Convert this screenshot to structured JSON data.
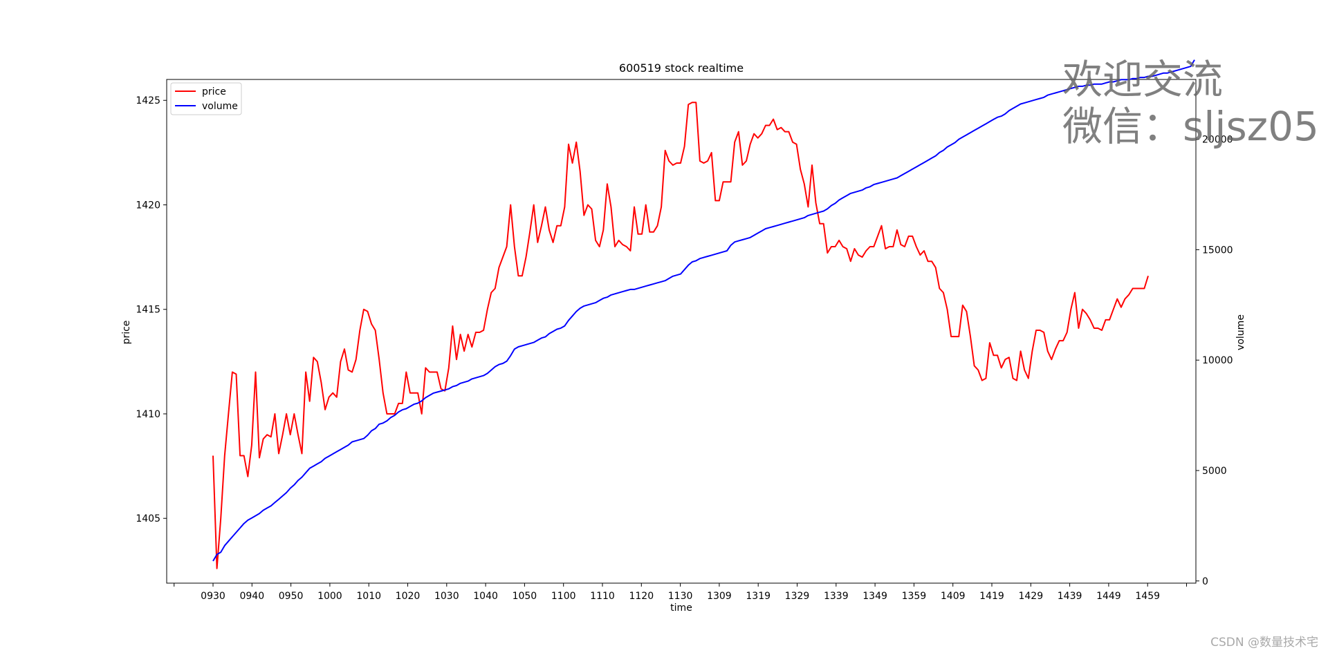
{
  "chart_data": {
    "type": "line",
    "title": "600519 stock realtime",
    "xlabel": "time",
    "ylabel": "price",
    "y2label": "volume",
    "x_ticks": [
      "0930",
      "0940",
      "0950",
      "1000",
      "1010",
      "1020",
      "1030",
      "1040",
      "1050",
      "1100",
      "1110",
      "1120",
      "1130",
      "1309",
      "1319",
      "1329",
      "1339",
      "1349",
      "1359",
      "1409",
      "1419",
      "1429",
      "1439",
      "1449",
      "1459"
    ],
    "ylim": [
      1401.9,
      1426.0
    ],
    "y_ticks": [
      1405,
      1410,
      1415,
      1420,
      1425
    ],
    "y2lim": [
      -100,
      22710
    ],
    "y2_ticks": [
      0,
      5000,
      10000,
      15000,
      20000
    ],
    "legend": {
      "position": "upper left",
      "entries": [
        "price",
        "volume"
      ]
    },
    "series": [
      {
        "name": "price",
        "axis": "left",
        "color": "#ff0000",
        "values": [
          1408,
          1402.6,
          1405,
          1408,
          1410,
          1412,
          1411.9,
          1408,
          1408,
          1407,
          1408.5,
          1412,
          1407.9,
          1408.8,
          1409,
          1408.9,
          1410,
          1408.1,
          1409,
          1410,
          1409,
          1410,
          1409,
          1408.1,
          1412,
          1410.6,
          1412.7,
          1412.5,
          1411.5,
          1410.2,
          1410.8,
          1411,
          1410.8,
          1412.5,
          1413.1,
          1412.1,
          1412,
          1412.6,
          1414,
          1415,
          1414.9,
          1414.3,
          1414,
          1412.6,
          1411,
          1410,
          1410,
          1410,
          1410.5,
          1410.5,
          1412,
          1411,
          1411,
          1411,
          1410,
          1412.2,
          1412,
          1412,
          1412,
          1411.2,
          1411.1,
          1412.2,
          1414.2,
          1412.6,
          1413.8,
          1413,
          1413.8,
          1413.2,
          1413.9,
          1413.9,
          1414,
          1415,
          1415.8,
          1416,
          1417,
          1417.5,
          1418,
          1420,
          1418,
          1416.6,
          1416.6,
          1417.5,
          1418.7,
          1420,
          1418.2,
          1419,
          1419.9,
          1418.8,
          1418.2,
          1419,
          1419,
          1419.9,
          1422.9,
          1422,
          1423,
          1421.6,
          1419.5,
          1420,
          1419.8,
          1418.3,
          1418,
          1418.8,
          1421,
          1419.9,
          1418,
          1418.3,
          1418.1,
          1418,
          1417.8,
          1419.9,
          1418.6,
          1418.6,
          1420,
          1418.7,
          1418.7,
          1419,
          1419.9,
          1422.6,
          1422.1,
          1421.9,
          1422,
          1422,
          1422.8,
          1424.8,
          1424.9,
          1424.9,
          1422.1,
          1422,
          1422.1,
          1422.5,
          1420.2,
          1420.2,
          1421.1,
          1421.1,
          1421.1,
          1423,
          1423.5,
          1421.9,
          1422.1,
          1422.9,
          1423.4,
          1423.2,
          1423.4,
          1423.8,
          1423.8,
          1424.1,
          1423.6,
          1423.7,
          1423.5,
          1423.5,
          1423,
          1422.9,
          1421.7,
          1421,
          1419.9,
          1421.9,
          1420.1,
          1419.1,
          1419.1,
          1417.7,
          1418,
          1418,
          1418.3,
          1418,
          1417.9,
          1417.3,
          1417.9,
          1417.6,
          1417.5,
          1417.8,
          1418,
          1418,
          1418.5,
          1419,
          1417.9,
          1418,
          1418,
          1418.8,
          1418.1,
          1418,
          1418.5,
          1418.5,
          1418,
          1417.6,
          1417.8,
          1417.3,
          1417.3,
          1417,
          1416,
          1415.8,
          1415,
          1413.7,
          1413.7,
          1413.7,
          1415.2,
          1414.9,
          1413.7,
          1412.3,
          1412.1,
          1411.6,
          1411.7,
          1413.4,
          1412.8,
          1412.8,
          1412.2,
          1412.6,
          1412.7,
          1411.7,
          1411.6,
          1413,
          1412.1,
          1411.7,
          1413,
          1414,
          1414,
          1413.9,
          1413,
          1412.6,
          1413.1,
          1413.5,
          1413.5,
          1413.9,
          1415,
          1415.8,
          1414.1,
          1415,
          1414.8,
          1414.5,
          1414.1,
          1414.1,
          1414,
          1414.5,
          1414.5,
          1415,
          1415.5,
          1415.1,
          1415.5,
          1415.7,
          1416,
          1416,
          1416,
          1416,
          1416.6
        ]
      },
      {
        "name": "volume",
        "axis": "right",
        "color": "#0000ff",
        "values": [
          900,
          1200,
          1300,
          1600,
          1800,
          2000,
          2200,
          2400,
          2600,
          2750,
          2850,
          2950,
          3050,
          3200,
          3300,
          3400,
          3550,
          3700,
          3850,
          4000,
          4200,
          4350,
          4550,
          4700,
          4900,
          5100,
          5200,
          5300,
          5400,
          5550,
          5650,
          5750,
          5850,
          5950,
          6050,
          6150,
          6300,
          6350,
          6400,
          6450,
          6600,
          6800,
          6900,
          7100,
          7150,
          7250,
          7400,
          7500,
          7650,
          7750,
          7800,
          7900,
          8000,
          8050,
          8150,
          8300,
          8400,
          8500,
          8550,
          8600,
          8650,
          8700,
          8800,
          8850,
          8950,
          9000,
          9050,
          9150,
          9200,
          9250,
          9300,
          9400,
          9550,
          9700,
          9800,
          9850,
          9950,
          10200,
          10500,
          10600,
          10650,
          10700,
          10750,
          10800,
          10900,
          11000,
          11050,
          11200,
          11300,
          11400,
          11450,
          11550,
          11800,
          12000,
          12200,
          12350,
          12450,
          12500,
          12550,
          12600,
          12700,
          12800,
          12850,
          12950,
          13000,
          13050,
          13100,
          13150,
          13200,
          13200,
          13250,
          13300,
          13350,
          13400,
          13450,
          13500,
          13550,
          13600,
          13700,
          13800,
          13850,
          13900,
          14100,
          14300,
          14450,
          14500,
          14600,
          14650,
          14700,
          14750,
          14800,
          14850,
          14900,
          14950,
          15200,
          15350,
          15400,
          15450,
          15500,
          15550,
          15650,
          15750,
          15850,
          15950,
          16000,
          16050,
          16100,
          16150,
          16200,
          16250,
          16300,
          16350,
          16400,
          16450,
          16550,
          16600,
          16650,
          16700,
          16750,
          16850,
          17000,
          17100,
          17250,
          17350,
          17450,
          17550,
          17600,
          17650,
          17700,
          17800,
          17850,
          17950,
          18000,
          18050,
          18100,
          18150,
          18200,
          18250,
          18350,
          18450,
          18550,
          18650,
          18750,
          18850,
          18950,
          19050,
          19150,
          19250,
          19400,
          19500,
          19650,
          19750,
          19850,
          20000,
          20100,
          20200,
          20300,
          20400,
          20500,
          20600,
          20700,
          20800,
          20900,
          21000,
          21050,
          21150,
          21300,
          21400,
          21500,
          21600,
          21650,
          21700,
          21750,
          21800,
          21850,
          21900,
          22000,
          22050,
          22100,
          22150,
          22200,
          22250,
          22300,
          22350,
          22400,
          22400,
          22450,
          22450,
          22500,
          22500,
          22500,
          22550,
          22600,
          22600,
          22650,
          22700,
          22700,
          22700,
          22750,
          22750,
          22800,
          22800,
          22850,
          22850,
          22900,
          22950,
          23000,
          23000,
          23050,
          23100,
          23150,
          23200,
          23250,
          23300,
          23600
        ]
      }
    ]
  },
  "watermark": {
    "line1": "欢迎交流",
    "line2": "微信：sljsz05"
  },
  "credit": "CSDN @数量技术宅"
}
